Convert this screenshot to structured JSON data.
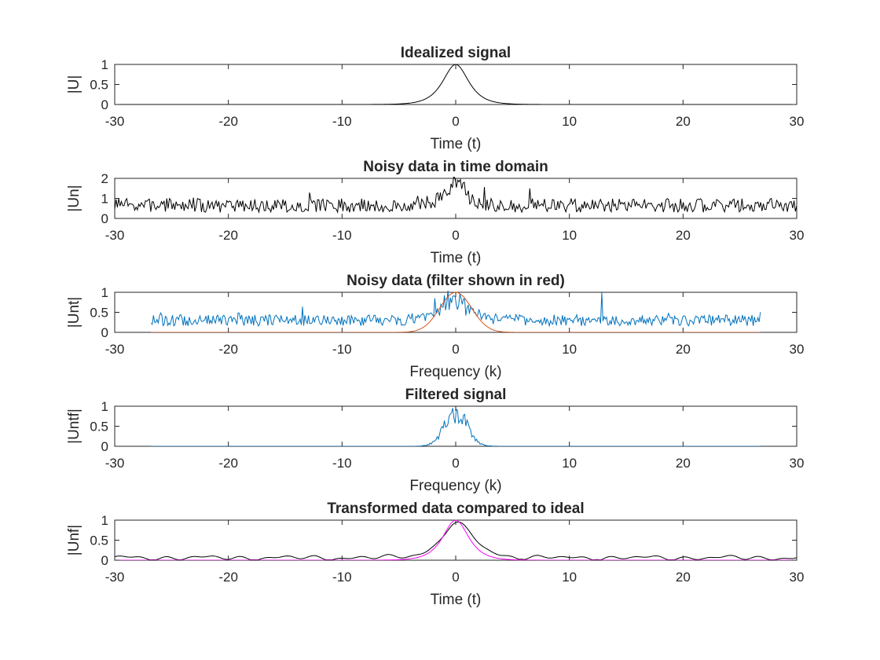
{
  "figure": {
    "background": "#ffffff",
    "axes_color": "#262626"
  },
  "chart_data": [
    {
      "type": "line",
      "title": "Idealized signal",
      "xlabel": "Time (t)",
      "ylabel": "|U|",
      "xlim": [
        -30,
        30
      ],
      "ylim": [
        0,
        1
      ],
      "xticks": [
        -30,
        -20,
        -10,
        0,
        10,
        20,
        30
      ],
      "yticks": [
        0,
        0.5,
        1
      ],
      "grid": false,
      "series": [
        {
          "color": "#000000",
          "shape": "sech",
          "x_range": [
            -30,
            30
          ],
          "samples": 401,
          "width": 1.0,
          "amplitude": 1.0,
          "center": 0
        }
      ]
    },
    {
      "type": "line",
      "title": "Noisy data in time domain",
      "xlabel": "Time (t)",
      "ylabel": "|Un|",
      "xlim": [
        -30,
        30
      ],
      "ylim": [
        0,
        2
      ],
      "xticks": [
        -30,
        -20,
        -10,
        0,
        10,
        20,
        30
      ],
      "yticks": [
        0,
        1,
        2
      ],
      "grid": false,
      "series": [
        {
          "color": "#000000",
          "shape": "noise",
          "x_range": [
            -30,
            30
          ],
          "samples": 512,
          "baseline": 0.65,
          "spread": 0.35,
          "peak": {
            "center": 0,
            "width": 1.0,
            "amplitude": 1.0
          },
          "seed": 7
        }
      ]
    },
    {
      "type": "line",
      "title": "Noisy data (filter shown in red)",
      "xlabel": "Frequency (k)",
      "ylabel": "|Unt|",
      "xlim": [
        -30,
        30
      ],
      "ylim": [
        0,
        1
      ],
      "xticks": [
        -30,
        -20,
        -10,
        0,
        10,
        20,
        30
      ],
      "yticks": [
        0,
        0.5,
        1
      ],
      "grid": false,
      "series": [
        {
          "color": "#0072BD",
          "shape": "noise",
          "x_range": [
            -26.8,
            26.8
          ],
          "samples": 512,
          "baseline": 0.3,
          "spread": 0.14,
          "peak": {
            "center": 0,
            "width": 1.1,
            "amplitude": 0.6
          },
          "seed": 13,
          "spikes": [
            {
              "x": 12.9,
              "y": 1.0
            },
            {
              "x": -1.8,
              "y": 0.85
            }
          ]
        },
        {
          "color": "#D95319",
          "shape": "gauss",
          "x_range": [
            -26.8,
            26.8
          ],
          "samples": 401,
          "sigma": 1.4,
          "amplitude": 1.0,
          "center": 0
        }
      ]
    },
    {
      "type": "line",
      "title": "Filtered signal",
      "xlabel": "Frequency (k)",
      "ylabel": "|Untf|",
      "xlim": [
        -30,
        30
      ],
      "ylim": [
        0,
        1
      ],
      "xticks": [
        -30,
        -20,
        -10,
        0,
        10,
        20,
        30
      ],
      "yticks": [
        0,
        0.5,
        1
      ],
      "grid": false,
      "series": [
        {
          "color": "#0072BD",
          "shape": "filtered",
          "x_range": [
            -26.8,
            26.8
          ],
          "samples": 512,
          "sigma": 1.0,
          "amplitude": 0.8,
          "spread": 0.3,
          "seed": 21
        }
      ]
    },
    {
      "type": "line",
      "title": "Transformed data compared to ideal",
      "xlabel": "Time (t)",
      "ylabel": "|Unf|",
      "xlim": [
        -30,
        30
      ],
      "ylim": [
        0,
        1
      ],
      "xticks": [
        -30,
        -20,
        -10,
        0,
        10,
        20,
        30
      ],
      "yticks": [
        0,
        0.5,
        1
      ],
      "grid": false,
      "series": [
        {
          "color": "#000000",
          "shape": "smooth",
          "x_range": [
            -30,
            30
          ],
          "samples": 601,
          "peak": {
            "center": 0.2,
            "width": 1.2,
            "amplitude": 0.95
          },
          "ripple": 0.11,
          "seed": 5
        },
        {
          "color": "#FF00FF",
          "shape": "sech",
          "x_range": [
            -30,
            30
          ],
          "samples": 401,
          "width": 1.0,
          "amplitude": 1.0,
          "center": 0
        }
      ]
    }
  ]
}
